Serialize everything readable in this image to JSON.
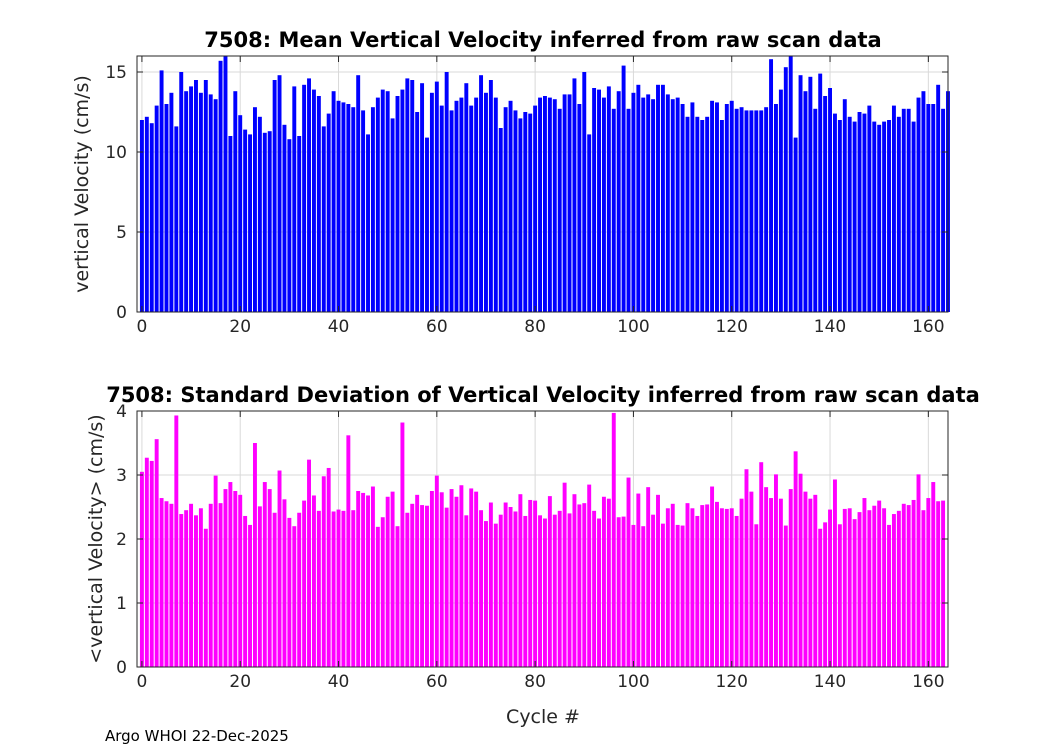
{
  "footer": "Argo WHOI 22-Dec-2025",
  "chart_data": [
    {
      "type": "bar",
      "title": "7508: Mean Vertical Velocity inferred from raw scan data",
      "xlabel": "",
      "ylabel": "vertical Velocity (cm/s)",
      "color": "#0000ff",
      "xlim": [
        -1,
        164
      ],
      "ylim": [
        0,
        16
      ],
      "xticks": [
        0,
        20,
        40,
        60,
        80,
        100,
        120,
        140,
        160
      ],
      "yticks": [
        0,
        5,
        10,
        15
      ],
      "grid": true,
      "x_start": 0,
      "values": [
        12.0,
        12.2,
        11.8,
        12.9,
        15.1,
        13.0,
        13.7,
        11.6,
        15.0,
        13.8,
        14.1,
        14.5,
        13.7,
        14.5,
        13.6,
        13.3,
        15.7,
        16.0,
        11.0,
        13.8,
        12.3,
        11.4,
        11.1,
        12.8,
        12.2,
        11.2,
        11.3,
        14.5,
        14.8,
        11.7,
        10.8,
        14.1,
        11.0,
        14.2,
        14.6,
        13.9,
        13.5,
        11.6,
        12.4,
        13.8,
        13.2,
        13.1,
        13.0,
        12.8,
        14.8,
        12.6,
        11.1,
        12.8,
        13.4,
        13.9,
        13.8,
        12.1,
        13.5,
        13.9,
        14.6,
        14.5,
        12.5,
        14.3,
        10.9,
        13.7,
        14.4,
        12.9,
        15.0,
        12.6,
        13.2,
        13.4,
        14.3,
        12.9,
        13.4,
        14.8,
        13.7,
        14.5,
        13.4,
        11.5,
        12.8,
        13.2,
        12.6,
        12.1,
        12.5,
        12.4,
        12.9,
        13.4,
        13.5,
        13.4,
        13.3,
        12.7,
        13.6,
        13.6,
        14.6,
        13.0,
        15.0,
        11.1,
        14.0,
        13.9,
        13.4,
        14.1,
        12.7,
        13.8,
        15.4,
        12.7,
        13.7,
        14.2,
        13.4,
        13.6,
        13.3,
        14.2,
        14.2,
        13.6,
        13.3,
        13.4,
        13.0,
        12.2,
        13.1,
        12.2,
        12.0,
        12.2,
        13.2,
        13.1,
        12.0,
        13.0,
        13.2,
        12.7,
        12.8,
        12.6,
        12.6,
        12.6,
        12.6,
        12.8,
        15.8,
        13.0,
        13.9,
        15.3,
        16.0,
        10.9,
        14.8,
        13.8,
        14.7,
        12.7,
        14.9,
        13.5,
        14.0,
        12.4,
        12.0,
        13.3,
        12.2,
        11.9,
        12.5,
        12.4,
        12.9,
        11.9,
        11.7,
        11.9,
        12.0,
        12.9,
        12.2,
        12.7,
        12.7,
        11.9,
        13.4,
        13.8,
        13.0,
        13.0,
        14.2,
        12.7,
        13.8
      ]
    },
    {
      "type": "bar",
      "title": "7508: Standard Deviation of Vertical Velocity inferred from raw scan data",
      "xlabel": "Cycle #",
      "ylabel": "<vertical Velocity> (cm/s)",
      "color": "#ff00ff",
      "xlim": [
        -1,
        164
      ],
      "ylim": [
        0,
        4
      ],
      "xticks": [
        0,
        20,
        40,
        60,
        80,
        100,
        120,
        140,
        160
      ],
      "yticks": [
        0,
        1,
        2,
        3,
        4
      ],
      "grid": true,
      "x_start": 0,
      "values": [
        3.05,
        3.27,
        3.22,
        3.56,
        2.64,
        2.59,
        2.55,
        3.93,
        2.39,
        2.45,
        2.55,
        2.37,
        2.48,
        2.16,
        2.55,
        2.99,
        2.56,
        2.78,
        2.89,
        2.75,
        2.69,
        2.36,
        2.22,
        3.5,
        2.51,
        2.89,
        2.78,
        2.41,
        3.07,
        2.62,
        2.33,
        2.2,
        2.41,
        2.6,
        3.24,
        2.68,
        2.44,
        2.98,
        3.11,
        2.43,
        2.46,
        2.44,
        3.62,
        2.45,
        2.75,
        2.72,
        2.68,
        2.82,
        2.19,
        2.34,
        2.66,
        2.74,
        2.2,
        3.82,
        2.41,
        2.55,
        2.69,
        2.53,
        2.52,
        2.75,
        2.99,
        2.73,
        2.49,
        2.78,
        2.66,
        2.84,
        2.37,
        2.79,
        2.74,
        2.45,
        2.28,
        2.57,
        2.24,
        2.38,
        2.57,
        2.5,
        2.43,
        2.7,
        2.36,
        2.61,
        2.6,
        2.37,
        2.32,
        2.67,
        2.38,
        2.44,
        2.88,
        2.4,
        2.7,
        2.54,
        2.56,
        2.85,
        2.44,
        2.32,
        2.66,
        2.63,
        3.97,
        2.34,
        2.35,
        2.96,
        2.22,
        2.71,
        2.2,
        2.81,
        2.38,
        2.69,
        2.24,
        2.48,
        2.55,
        2.22,
        2.21,
        2.56,
        2.48,
        2.36,
        2.53,
        2.54,
        2.82,
        2.58,
        2.48,
        2.47,
        2.48,
        2.36,
        2.63,
        3.09,
        2.74,
        2.23,
        3.2,
        2.81,
        2.64,
        3.01,
        2.63,
        2.21,
        2.78,
        3.37,
        3.02,
        2.74,
        2.63,
        2.69,
        2.16,
        2.26,
        2.46,
        2.93,
        2.23,
        2.47,
        2.48,
        2.31,
        2.42,
        2.64,
        2.45,
        2.52,
        2.6,
        2.48,
        2.22,
        2.39,
        2.44,
        2.55,
        2.53,
        2.61,
        3.01,
        2.45,
        2.64,
        2.89,
        2.59,
        2.6
      ]
    }
  ]
}
